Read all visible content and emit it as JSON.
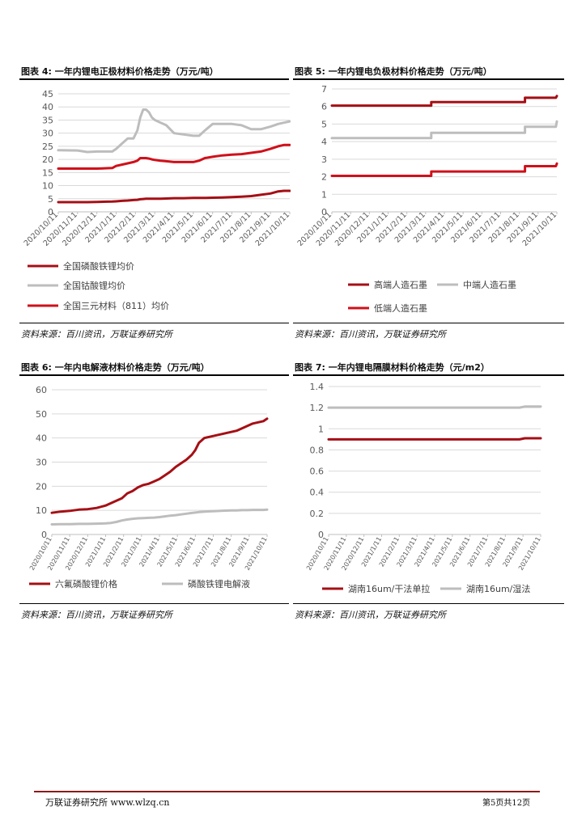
{
  "charts": [
    {
      "title": "图表 4:  一年内锂电正极材料价格走势（万元/吨）",
      "source": "资料来源：百川资讯，万联证券研究所"
    },
    {
      "title": "图表 5:  一年内锂电负极材料价格走势（万元/吨）",
      "source": "资料来源：百川资讯，万联证券研究所"
    },
    {
      "title": "图表 6:  一年内电解液材料价格走势（万元/吨）",
      "source": "资料来源：百川资讯，万联证券研究所"
    },
    {
      "title": "图表 7:  一年内锂电隔膜材料价格走势（元/m2）",
      "source": "资料来源：百川资讯，万联证券研究所"
    }
  ],
  "colors": {
    "dark_red": "#A50F15",
    "gray": "#BDBDBD",
    "red": "#D0101A",
    "footer_line": "#8B1A1A"
  },
  "chart_data": [
    {
      "type": "line",
      "title": "一年内锂电正极材料价格走势（万元/吨）",
      "ylim": [
        0,
        45
      ],
      "yticks": [
        "0",
        "5",
        "10",
        "15",
        "20",
        "25",
        "30",
        "35",
        "40",
        "45"
      ],
      "categories": [
        "2020/10/11",
        "2020/11/11",
        "2020/12/11",
        "2021/1/11",
        "2021/2/11",
        "2021/3/11",
        "2021/4/11",
        "2021/5/11",
        "2021/6/11",
        "2021/7/11",
        "2021/8/11",
        "2021/9/11",
        "2021/10/11"
      ],
      "x": [
        0,
        1,
        1.5,
        2,
        2.8,
        3,
        3.3,
        3.6,
        3.9,
        4.1,
        4.25,
        4.4,
        4.55,
        4.7,
        4.85,
        5,
        5.3,
        5.6,
        6,
        6.5,
        7,
        7.3,
        7.6,
        8,
        8.5,
        9,
        9.5,
        10,
        10.5,
        11,
        11.4,
        11.7,
        12
      ],
      "series": [
        {
          "name": "全国磷酸铁锂均价",
          "color": "dark_red",
          "values": [
            3.7,
            3.7,
            3.7,
            3.8,
            3.9,
            4.0,
            4.2,
            4.3,
            4.5,
            4.6,
            4.8,
            4.9,
            5.0,
            5.0,
            5.0,
            5.0,
            5.0,
            5.1,
            5.2,
            5.2,
            5.3,
            5.3,
            5.3,
            5.4,
            5.5,
            5.6,
            5.8,
            6.0,
            6.5,
            7.0,
            7.8,
            8.0,
            8.0
          ]
        },
        {
          "name": "全国钴酸锂均价",
          "color": "gray",
          "values": [
            23.5,
            23.4,
            22.8,
            23,
            23,
            24,
            26,
            28,
            28,
            31,
            36,
            39,
            39,
            38,
            36,
            35,
            34,
            33,
            30,
            29.5,
            29,
            29,
            31,
            33.5,
            33.5,
            33.5,
            33,
            31.5,
            31.5,
            32.5,
            33.5,
            34,
            34.5
          ]
        },
        {
          "name": "全国三元材料（811）均价",
          "color": "red",
          "values": [
            16.5,
            16.5,
            16.5,
            16.5,
            16.7,
            17.5,
            18,
            18.5,
            19,
            19.5,
            20.5,
            20.5,
            20.5,
            20.3,
            20,
            19.8,
            19.5,
            19.3,
            19,
            19,
            19,
            19.5,
            20.5,
            21,
            21.5,
            21.8,
            22,
            22.5,
            23,
            24,
            25,
            25.5,
            25.5
          ]
        }
      ]
    },
    {
      "type": "line",
      "title": "一年内锂电负极材料价格走势（万元/吨）",
      "ylim": [
        0,
        7
      ],
      "yticks": [
        "0",
        "1",
        "2",
        "3",
        "4",
        "5",
        "6",
        "7"
      ],
      "categories": [
        "2020/10/11",
        "2020/11/11",
        "2020/12/11",
        "2021/1/11",
        "2021/2/11",
        "2021/3/11",
        "2021/4/11",
        "2021/5/11",
        "2021/6/11",
        "2021/7/11",
        "2021/8/11",
        "2021/9/11",
        "2021/10/11"
      ],
      "x": [
        0,
        5.3,
        5.3,
        10.3,
        10.3,
        11.95,
        12
      ],
      "series": [
        {
          "name": "高端人造石墨",
          "color": "dark_red",
          "values": [
            6.05,
            6.05,
            6.25,
            6.25,
            6.5,
            6.5,
            6.6
          ]
        },
        {
          "name": "中端人造石墨",
          "color": "gray",
          "values": [
            4.2,
            4.2,
            4.5,
            4.5,
            4.85,
            4.85,
            5.15
          ]
        },
        {
          "name": "低端人造石墨",
          "color": "red",
          "values": [
            2.05,
            2.05,
            2.3,
            2.3,
            2.6,
            2.6,
            2.75
          ]
        }
      ]
    },
    {
      "type": "line",
      "title": "一年内电解液材料价格走势（万元/吨）",
      "ylim": [
        0,
        60
      ],
      "yticks": [
        "0",
        "10",
        "20",
        "30",
        "40",
        "50",
        "60"
      ],
      "categories": [
        "2020/10/11",
        "2020/11/11",
        "2020/12/11",
        "2021/1/11",
        "2021/2/11",
        "2021/3/11",
        "2021/4/11",
        "2021/5/11",
        "2021/6/11",
        "2021/7/11",
        "2021/8/11",
        "2021/9/11",
        "2021/10/11"
      ],
      "x": [
        0,
        0.5,
        1,
        1.5,
        2,
        2.5,
        3,
        3.3,
        3.6,
        3.9,
        4.2,
        4.5,
        4.8,
        5.1,
        5.4,
        5.7,
        6,
        6.3,
        6.6,
        6.9,
        7.2,
        7.5,
        7.8,
        8,
        8.2,
        8.5,
        8.8,
        9.1,
        9.4,
        9.7,
        10,
        10.3,
        10.6,
        10.9,
        11.2,
        11.5,
        11.8,
        12
      ],
      "series": [
        {
          "name": "六氟磷酸锂价格",
          "color": "dark_red",
          "values": [
            9,
            9.5,
            9.8,
            10.3,
            10.5,
            11,
            12,
            13,
            14,
            15,
            17,
            18,
            19.5,
            20.5,
            21,
            22,
            23,
            24.5,
            26,
            28,
            29.5,
            31,
            33,
            35,
            38,
            40,
            40.5,
            41,
            41.5,
            42,
            42.5,
            43,
            44,
            45,
            46,
            46.5,
            47,
            48
          ]
        },
        {
          "name": "磷酸铁锂电解液",
          "color": "gray",
          "values": [
            4.2,
            4.3,
            4.3,
            4.4,
            4.4,
            4.5,
            4.6,
            4.8,
            5.2,
            5.8,
            6.2,
            6.5,
            6.7,
            6.8,
            6.9,
            7,
            7.2,
            7.5,
            7.8,
            8,
            8.3,
            8.6,
            8.9,
            9.1,
            9.3,
            9.5,
            9.6,
            9.7,
            9.8,
            9.9,
            10,
            10,
            10.1,
            10.1,
            10.2,
            10.2,
            10.2,
            10.3
          ]
        }
      ]
    },
    {
      "type": "line",
      "title": "一年内锂电隔膜材料价格走势（元/m2）",
      "ylim": [
        0,
        1.4
      ],
      "yticks": [
        "0",
        "0.2",
        "0.4",
        "0.6",
        "0.8",
        "1",
        "1.2",
        "1.4"
      ],
      "categories": [
        "2020/10/11",
        "2020/11/11",
        "2020/12/11",
        "2021/1/11",
        "2021/2/11",
        "2021/3/11",
        "2021/4/11",
        "2021/5/11",
        "2021/6/11",
        "2021/7/11",
        "2021/8/11",
        "2021/9/11",
        "2021/10/11"
      ],
      "x": [
        0,
        10.8,
        11.1,
        12
      ],
      "series": [
        {
          "name": "湖南16um/干法单拉",
          "color": "dark_red",
          "values": [
            0.9,
            0.9,
            0.91,
            0.91
          ]
        },
        {
          "name": "湖南16um/湿法",
          "color": "gray",
          "values": [
            1.2,
            1.2,
            1.21,
            1.21
          ]
        }
      ]
    }
  ],
  "footer": {
    "left": "万联证券研究所 www.wlzq.cn",
    "right": "第5页共12页"
  }
}
